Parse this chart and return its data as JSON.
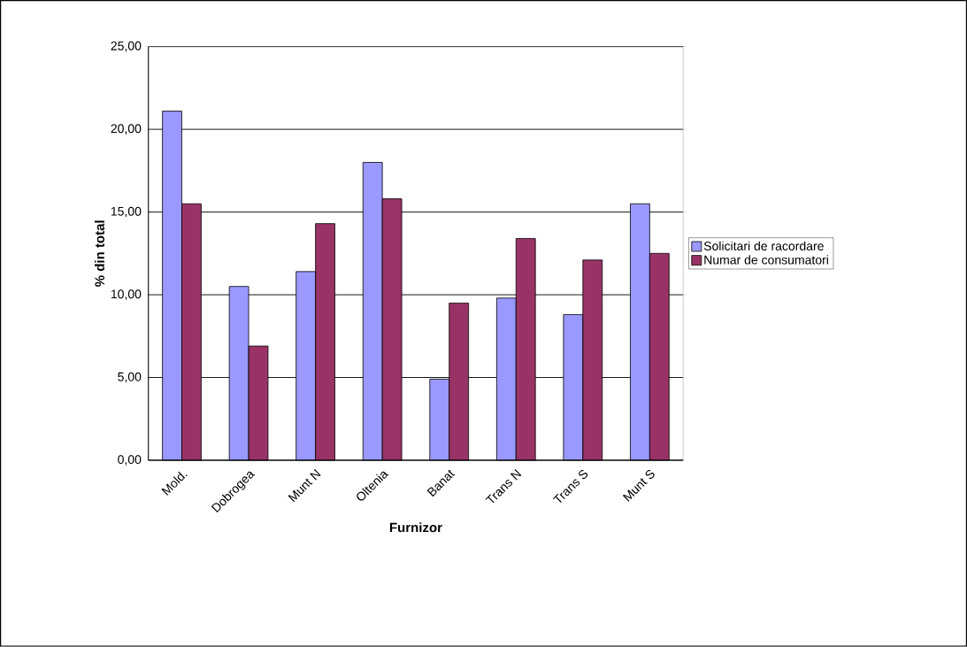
{
  "chart_data": {
    "type": "bar",
    "xlabel": "Furnizor",
    "ylabel": "% din total",
    "categories": [
      "Mold.",
      "Dobrogea",
      "Munt N",
      "Oltenia",
      "Banat",
      "Trans N",
      "Trans S",
      "Munt S"
    ],
    "series": [
      {
        "name": "Solicitari de racordare",
        "color": "#9999ff",
        "values": [
          21.1,
          10.5,
          11.4,
          18.0,
          4.9,
          9.8,
          8.8,
          15.5
        ]
      },
      {
        "name": "Numar de consumatori",
        "color": "#993366",
        "values": [
          15.5,
          6.9,
          14.3,
          15.8,
          9.5,
          13.4,
          12.1,
          12.5
        ]
      }
    ],
    "ylim": [
      0,
      25
    ],
    "yticks": [
      {
        "value": 0,
        "label": "0,00"
      },
      {
        "value": 5,
        "label": "5,00"
      },
      {
        "value": 10,
        "label": "10,00"
      },
      {
        "value": 15,
        "label": "15,00"
      },
      {
        "value": 20,
        "label": "20,00"
      },
      {
        "value": 25,
        "label": "25,00"
      }
    ],
    "grid": "y",
    "legend": "right"
  }
}
